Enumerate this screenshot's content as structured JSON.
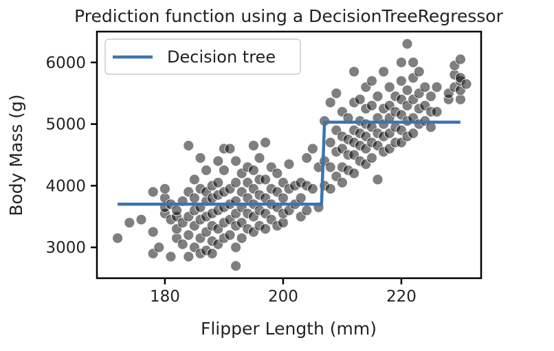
{
  "colors": {
    "line": "#3a75b0",
    "points": "#000000",
    "axes": "#000000",
    "background": "#ffffff",
    "legend_border": "#cccccc"
  },
  "chart_data": {
    "type": "scatter",
    "title": "Prediction function using a DecisionTreeRegressor",
    "xlabel": "Flipper Length (mm)",
    "ylabel": "Body Mass (g)",
    "xlim": [
      168.5,
      233.5
    ],
    "ylim": [
      2500,
      6500
    ],
    "xticks": [
      180,
      200,
      220
    ],
    "yticks": [
      3000,
      4000,
      5000,
      6000
    ],
    "grid": false,
    "legend_position": "top-left",
    "series": [
      {
        "name": "Decision tree",
        "kind": "line",
        "x": [
          172,
          206.5,
          207,
          230
        ],
        "y": [
          3700,
          3700,
          5030,
          5030
        ]
      },
      {
        "kind": "scatter",
        "points": [
          [
            172,
            3150
          ],
          [
            174,
            3400
          ],
          [
            176,
            3450
          ],
          [
            178,
            2900
          ],
          [
            178,
            3250
          ],
          [
            178,
            3900
          ],
          [
            179,
            3000
          ],
          [
            180,
            3550
          ],
          [
            180,
            3650
          ],
          [
            180,
            3800
          ],
          [
            180,
            3950
          ],
          [
            181,
            2850
          ],
          [
            181,
            3450
          ],
          [
            181,
            3700
          ],
          [
            182,
            3150
          ],
          [
            182,
            3300
          ],
          [
            182,
            3500
          ],
          [
            182,
            3600
          ],
          [
            183,
            3050
          ],
          [
            183,
            3400
          ],
          [
            183,
            3750
          ],
          [
            184,
            2850
          ],
          [
            184,
            3200
          ],
          [
            184,
            3500
          ],
          [
            184,
            3900
          ],
          [
            184,
            4650
          ],
          [
            185,
            3000
          ],
          [
            185,
            3350
          ],
          [
            185,
            3600
          ],
          [
            185,
            3800
          ],
          [
            185,
            4100
          ],
          [
            186,
            2900
          ],
          [
            186,
            3150
          ],
          [
            186,
            3450
          ],
          [
            186,
            3650
          ],
          [
            186,
            3950
          ],
          [
            186,
            4450
          ],
          [
            187,
            2950
          ],
          [
            187,
            3250
          ],
          [
            187,
            3500
          ],
          [
            187,
            3750
          ],
          [
            187,
            3900
          ],
          [
            187,
            4250
          ],
          [
            188,
            2900
          ],
          [
            188,
            3100
          ],
          [
            188,
            3350
          ],
          [
            188,
            3550
          ],
          [
            188,
            3800
          ],
          [
            188,
            4000
          ],
          [
            189,
            3050
          ],
          [
            189,
            3300
          ],
          [
            189,
            3600
          ],
          [
            189,
            3850
          ],
          [
            189,
            4050
          ],
          [
            189,
            4400
          ],
          [
            190,
            3150
          ],
          [
            190,
            3400
          ],
          [
            190,
            3650
          ],
          [
            190,
            3900
          ],
          [
            190,
            4250
          ],
          [
            190,
            4600
          ],
          [
            191,
            3200
          ],
          [
            191,
            3450
          ],
          [
            191,
            3700
          ],
          [
            191,
            3950
          ],
          [
            191,
            4600
          ],
          [
            192,
            2700
          ],
          [
            192,
            3000
          ],
          [
            192,
            3350
          ],
          [
            192,
            3550
          ],
          [
            192,
            3750
          ],
          [
            192,
            4050
          ],
          [
            192,
            4400
          ],
          [
            193,
            3150
          ],
          [
            193,
            3400
          ],
          [
            193,
            3650
          ],
          [
            193,
            3900
          ],
          [
            193,
            4200
          ],
          [
            194,
            3300
          ],
          [
            194,
            3550
          ],
          [
            194,
            3800
          ],
          [
            194,
            4050
          ],
          [
            194,
            4300
          ],
          [
            195,
            3250
          ],
          [
            195,
            3500
          ],
          [
            195,
            3700
          ],
          [
            195,
            3950
          ],
          [
            195,
            4250
          ],
          [
            195,
            4650
          ],
          [
            196,
            3350
          ],
          [
            196,
            3600
          ],
          [
            196,
            3850
          ],
          [
            196,
            4100
          ],
          [
            196,
            4450
          ],
          [
            197,
            3300
          ],
          [
            197,
            3550
          ],
          [
            197,
            3800
          ],
          [
            197,
            4100
          ],
          [
            197,
            4700
          ],
          [
            198,
            3450
          ],
          [
            198,
            3700
          ],
          [
            198,
            3950
          ],
          [
            198,
            4300
          ],
          [
            199,
            3350
          ],
          [
            199,
            3650
          ],
          [
            199,
            3900
          ],
          [
            199,
            4200
          ],
          [
            200,
            3400
          ],
          [
            200,
            3550
          ],
          [
            200,
            3800
          ],
          [
            200,
            4050
          ],
          [
            201,
            3600
          ],
          [
            201,
            3950
          ],
          [
            201,
            4350
          ],
          [
            202,
            3700
          ],
          [
            202,
            4000
          ],
          [
            203,
            3500
          ],
          [
            203,
            3800
          ],
          [
            203,
            4050
          ],
          [
            204,
            3600
          ],
          [
            204,
            4000
          ],
          [
            204,
            4450
          ],
          [
            205,
            3950
          ],
          [
            205,
            4600
          ],
          [
            206,
            3650
          ],
          [
            206,
            4300
          ],
          [
            207,
            4000
          ],
          [
            207,
            4400
          ],
          [
            207,
            5050
          ],
          [
            208,
            3950
          ],
          [
            208,
            4300
          ],
          [
            208,
            4700
          ],
          [
            208,
            5350
          ],
          [
            209,
            4150
          ],
          [
            209,
            4550
          ],
          [
            209,
            4900
          ],
          [
            209,
            5500
          ],
          [
            210,
            4050
          ],
          [
            210,
            4300
          ],
          [
            210,
            4600
          ],
          [
            210,
            4800
          ],
          [
            210,
            5200
          ],
          [
            211,
            4250
          ],
          [
            211,
            4500
          ],
          [
            211,
            4750
          ],
          [
            211,
            5100
          ],
          [
            212,
            4200
          ],
          [
            212,
            4500
          ],
          [
            212,
            4700
          ],
          [
            212,
            4900
          ],
          [
            212,
            5350
          ],
          [
            212,
            5850
          ],
          [
            213,
            4400
          ],
          [
            213,
            4650
          ],
          [
            213,
            4850
          ],
          [
            213,
            5050
          ],
          [
            213,
            5400
          ],
          [
            214,
            4350
          ],
          [
            214,
            4600
          ],
          [
            214,
            4800
          ],
          [
            214,
            5000
          ],
          [
            214,
            5250
          ],
          [
            214,
            5600
          ],
          [
            215,
            4450
          ],
          [
            215,
            4700
          ],
          [
            215,
            4950
          ],
          [
            215,
            5300
          ],
          [
            215,
            5700
          ],
          [
            216,
            4100
          ],
          [
            216,
            4650
          ],
          [
            216,
            4850
          ],
          [
            216,
            5100
          ],
          [
            216,
            5450
          ],
          [
            217,
            4550
          ],
          [
            217,
            4800
          ],
          [
            217,
            5000
          ],
          [
            217,
            5250
          ],
          [
            217,
            5850
          ],
          [
            218,
            4600
          ],
          [
            218,
            4850
          ],
          [
            218,
            5100
          ],
          [
            218,
            5300
          ],
          [
            218,
            5600
          ],
          [
            219,
            4700
          ],
          [
            219,
            4950
          ],
          [
            219,
            5200
          ],
          [
            219,
            5450
          ],
          [
            220,
            4700
          ],
          [
            220,
            4900
          ],
          [
            220,
            5150
          ],
          [
            220,
            5400
          ],
          [
            220,
            5700
          ],
          [
            220,
            6000
          ],
          [
            221,
            4800
          ],
          [
            221,
            5050
          ],
          [
            221,
            5300
          ],
          [
            221,
            5550
          ],
          [
            221,
            6300
          ],
          [
            222,
            4850
          ],
          [
            222,
            5100
          ],
          [
            222,
            5400
          ],
          [
            222,
            5750
          ],
          [
            222,
            6000
          ],
          [
            223,
            5000
          ],
          [
            223,
            5250
          ],
          [
            223,
            5500
          ],
          [
            223,
            5850
          ],
          [
            224,
            5050
          ],
          [
            224,
            5300
          ],
          [
            224,
            5600
          ],
          [
            225,
            4950
          ],
          [
            225,
            5200
          ],
          [
            225,
            5450
          ],
          [
            226,
            5200
          ],
          [
            226,
            5600
          ],
          [
            228,
            5400
          ],
          [
            228,
            5500
          ],
          [
            229,
            5600
          ],
          [
            229,
            5800
          ],
          [
            229,
            5950
          ],
          [
            230,
            5400
          ],
          [
            230,
            5550
          ],
          [
            230,
            5700
          ],
          [
            230,
            5750
          ],
          [
            230,
            6050
          ],
          [
            231,
            5650
          ]
        ]
      }
    ]
  }
}
